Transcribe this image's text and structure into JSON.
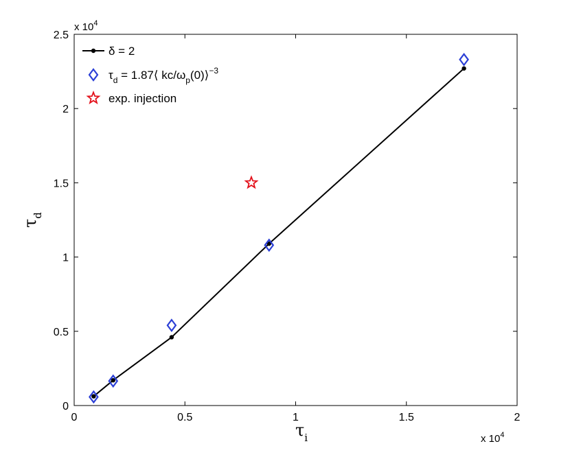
{
  "chart_data": {
    "type": "line",
    "xlabel": "τ",
    "xlabel_sub": "i",
    "ylabel": "τ",
    "ylabel_sub": "d",
    "xlim": [
      0,
      20000
    ],
    "ylim": [
      0,
      25000
    ],
    "x_ticks": [
      0,
      5000,
      10000,
      15000,
      20000
    ],
    "y_ticks": [
      0,
      5000,
      10000,
      15000,
      20000,
      25000
    ],
    "x_tick_labels": [
      "0",
      "0.5",
      "1",
      "1.5",
      "2"
    ],
    "y_tick_labels": [
      "0",
      "0.5",
      "1",
      "1.5",
      "2",
      "2.5"
    ],
    "x_multiplier": {
      "base": "x 10",
      "exp": "4"
    },
    "y_multiplier": {
      "base": "x 10",
      "exp": "4"
    },
    "grid": false,
    "legend_position": "top-left",
    "series": [
      {
        "name": "δ = 2",
        "style": "line-dot",
        "color": "#000000",
        "x": [
          880,
          1760,
          4400,
          8800,
          17600
        ],
        "y": [
          620,
          1700,
          4600,
          10900,
          22700
        ]
      },
      {
        "name": "τd = 1.87⟨ kc/ωp(0)⟩−3",
        "style": "diamond",
        "color": "#2b3fd6",
        "x": [
          880,
          1760,
          4400,
          8800,
          17600
        ],
        "y": [
          580,
          1650,
          5400,
          10800,
          23300
        ]
      },
      {
        "name": "exp. injection",
        "style": "star",
        "color": "#e3101a",
        "x": [
          8000
        ],
        "y": [
          15000
        ]
      }
    ],
    "legend": [
      {
        "label_parts": [
          "δ = 2"
        ]
      },
      {
        "label_parts": [
          "τ",
          "d",
          " = 1.87⟨ kc/ω",
          "p",
          "(0)⟩",
          "−3"
        ]
      },
      {
        "label_parts": [
          "exp. injection"
        ]
      }
    ]
  }
}
